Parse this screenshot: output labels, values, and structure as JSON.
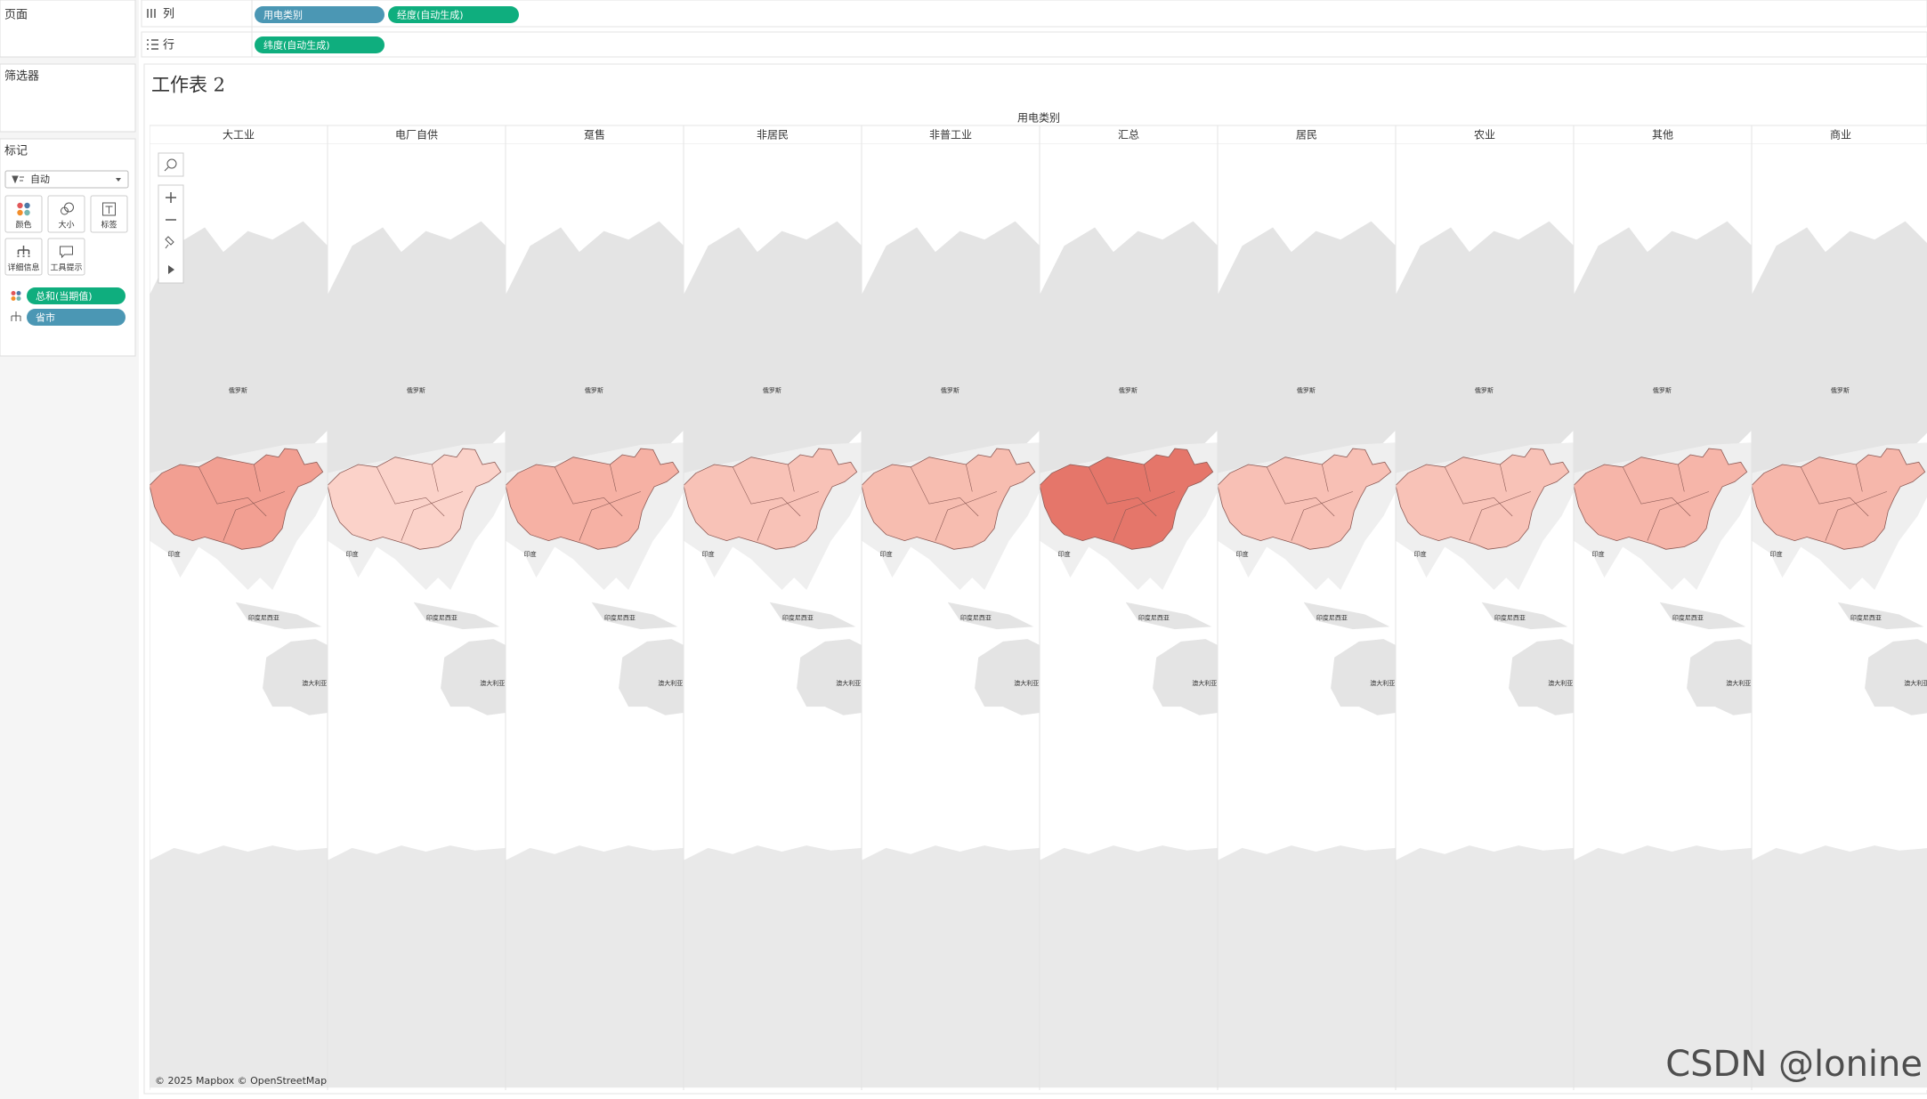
{
  "pages_shelf": {
    "title": "页面"
  },
  "shelves": {
    "columns": {
      "label": "列",
      "pills": [
        "用电类别",
        "经度(自动生成)"
      ]
    },
    "rows": {
      "label": "行",
      "pills": [
        "纬度(自动生成)"
      ]
    }
  },
  "filters": {
    "title": "筛选器"
  },
  "marks": {
    "title": "标记",
    "type": "自动",
    "buttons": [
      "颜色",
      "大小",
      "标签",
      "详细信息",
      "工具提示"
    ],
    "fields": [
      "总和(当期值)",
      "省市"
    ]
  },
  "worksheet": {
    "title": "工作表 2",
    "header": "用电类别",
    "columns": [
      "大工业",
      "电厂自供",
      "趸售",
      "非居民",
      "非普工业",
      "汇总",
      "居民",
      "农业",
      "其他",
      "商业"
    ],
    "column_colors": [
      "#f19a8c",
      "#fbd0c6",
      "#f5ad9f",
      "#f8bfb3",
      "#f7b9ac",
      "#e46f62",
      "#f8bdb1",
      "#f8bfb3",
      "#f6b1a4",
      "#f6b3a6"
    ],
    "map_labels": {
      "russia": "俄罗斯",
      "india": "印度",
      "indonesia": "印度尼西亚",
      "australia": "澳大利亚"
    },
    "attribution": "© 2025 Mapbox © OpenStreetMap"
  },
  "watermark": "CSDN @lonine"
}
